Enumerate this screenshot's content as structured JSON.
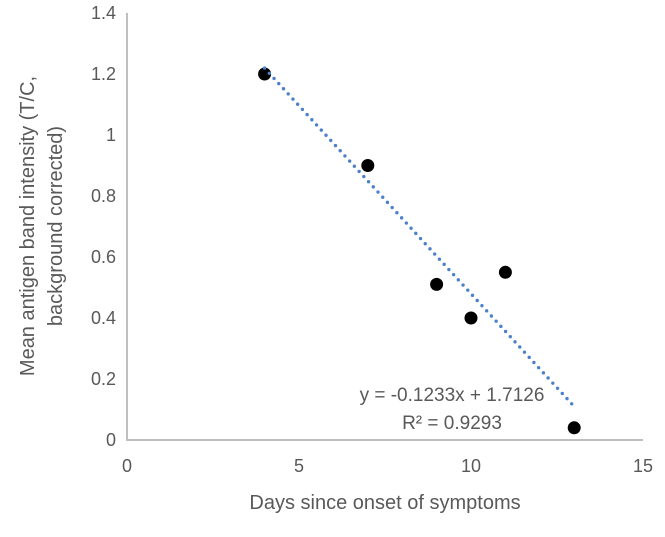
{
  "chart_data": {
    "type": "scatter",
    "title": "",
    "xlabel": "Days since onset of symptoms",
    "ylabel": "Mean antigen band intensity (T/C, background corrected)",
    "ylabel_line1": "Mean antigen band intensity (T/C,",
    "ylabel_line2": "background corrected)",
    "xlim": [
      0,
      15
    ],
    "ylim": [
      0,
      1.4
    ],
    "grid": false,
    "legend": "none",
    "xticks": [
      {
        "value": 0,
        "label": "0"
      },
      {
        "value": 5,
        "label": "5"
      },
      {
        "value": 10,
        "label": "10"
      },
      {
        "value": 15,
        "label": "15"
      }
    ],
    "yticks": [
      {
        "value": 0,
        "label": "0"
      },
      {
        "value": 0.2,
        "label": "0.2"
      },
      {
        "value": 0.4,
        "label": "0.4"
      },
      {
        "value": 0.6,
        "label": "0.6"
      },
      {
        "value": 0.8,
        "label": "0.8"
      },
      {
        "value": 1,
        "label": "1"
      },
      {
        "value": 1.2,
        "label": "1.2"
      },
      {
        "value": 1.4,
        "label": "1.4"
      }
    ],
    "series": [
      {
        "name": "antigen-band-intensity",
        "marker": "filled-circle",
        "points": [
          {
            "x": 4,
            "y": 1.2
          },
          {
            "x": 7,
            "y": 0.9
          },
          {
            "x": 9,
            "y": 0.51
          },
          {
            "x": 10,
            "y": 0.4
          },
          {
            "x": 11,
            "y": 0.55
          },
          {
            "x": 13,
            "y": 0.04
          }
        ]
      }
    ],
    "trendline": {
      "style": "dotted",
      "slope": -0.1233,
      "intercept": 1.7126,
      "x_start": 4,
      "x_end": 13
    },
    "annotation": {
      "equation": "y = -0.1233x + 1.7126",
      "r_squared": "R² = 0.9293"
    },
    "colors": {
      "marker": "#000000",
      "trendline": "#4a80cc",
      "axis_line": "#bfbfbf",
      "text": "#595959"
    }
  }
}
